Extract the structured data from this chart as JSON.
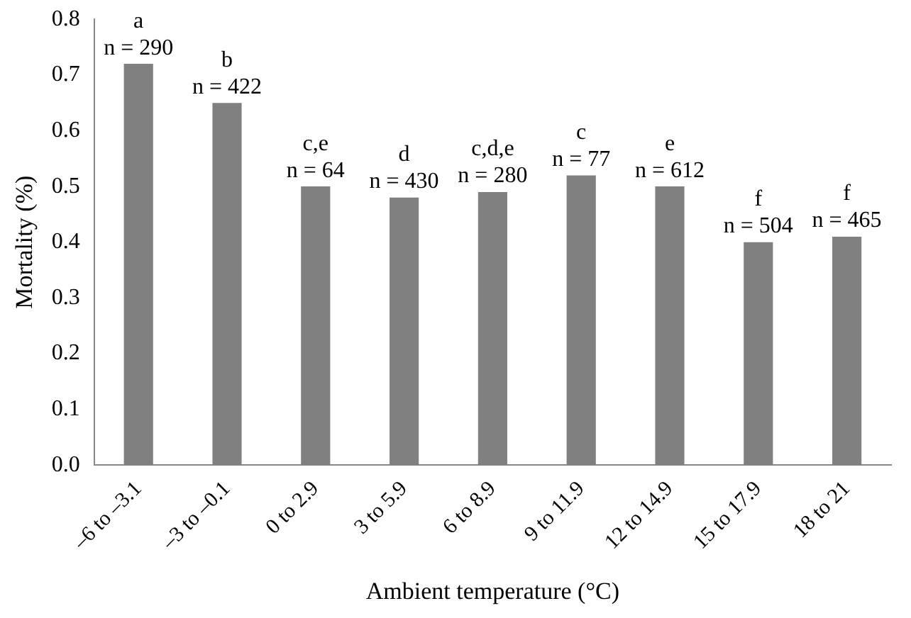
{
  "chart_data": {
    "type": "bar",
    "xlabel": "Ambient temperature (°C)",
    "ylabel": "Mortality (%)",
    "categories": [
      "–6 to –3.1",
      "–3 to –0.1",
      "0 to 2.9",
      "3 to 5.9",
      "6 to 8.9",
      "9 to 11.9",
      "12 to 14.9",
      "15 to 17.9",
      "18 to 21"
    ],
    "values": [
      0.72,
      0.65,
      0.5,
      0.48,
      0.49,
      0.52,
      0.5,
      0.4,
      0.41
    ],
    "color": "#808080",
    "ylim": [
      0,
      0.8
    ],
    "yticks": [
      {
        "value": 0,
        "label": "0.0"
      },
      0.1,
      0.2,
      0.3,
      0.4,
      0.5,
      0.6,
      0.7,
      0.8
    ],
    "grid": false,
    "legend": false,
    "annotations": [
      {
        "text": "a",
        "x": "–6 to –3.1",
        "y": 0.72
      },
      {
        "text": "n = 290",
        "x": "–6 to –3.1",
        "y": 0.72
      },
      {
        "text": "b",
        "x": "–3 to –0.1",
        "y": 0.65
      },
      {
        "text": "n = 422",
        "x": "–3 to –0.1",
        "y": 0.65
      },
      {
        "text": "c,e",
        "x": "0 to 2.9",
        "y": 0.5
      },
      {
        "text": "n = 64",
        "x": "0 to 2.9",
        "y": 0.5
      },
      {
        "text": "d",
        "x": "3 to 5.9",
        "y": 0.48
      },
      {
        "text": "n = 430",
        "x": "3 to 5.9",
        "y": 0.48
      },
      {
        "text": "c,d,e",
        "x": "6 to 8.9",
        "y": 0.49
      },
      {
        "text": "n = 280",
        "x": "6 to 8.9",
        "y": 0.49
      },
      {
        "text": "c",
        "x": "9 to 11.9",
        "y": 0.52
      },
      {
        "text": "n = 77",
        "x": "9 to 11.9",
        "y": 0.52
      },
      {
        "text": "e",
        "x": "12 to 14.9",
        "y": 0.5
      },
      {
        "text": "n = 612",
        "x": "12 to 14.9",
        "y": 0.5
      },
      {
        "text": "f",
        "x": "15 to 17.9",
        "y": 0.4
      },
      {
        "text": "n = 504",
        "x": "15 to 17.9",
        "y": 0.4
      },
      {
        "text": "f",
        "x": "18 to 21",
        "y": 0.41
      },
      {
        "text": "n = 465",
        "x": "18 to 21",
        "y": 0.41
      }
    ]
  }
}
